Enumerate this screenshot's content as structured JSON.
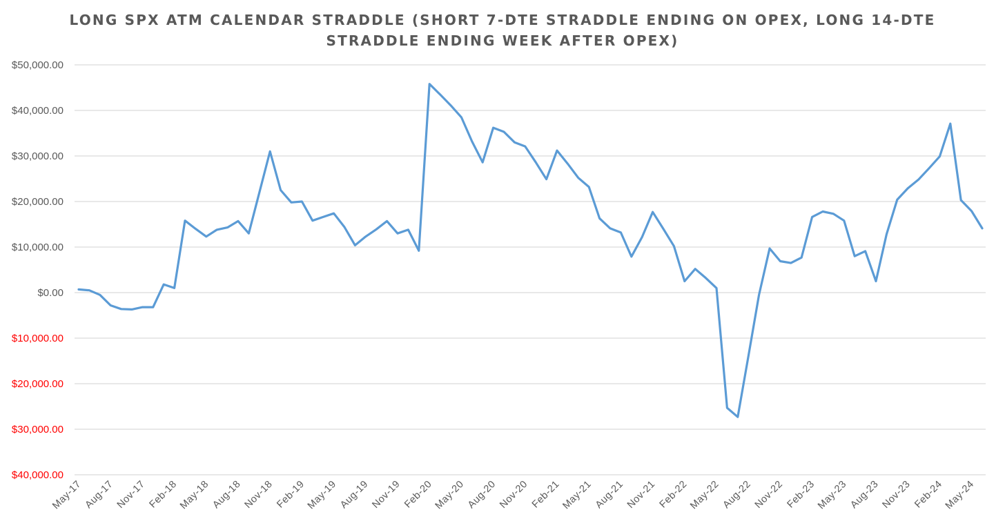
{
  "chart_data": {
    "type": "line",
    "title_lines": [
      "LONG SPX ATM CALENDAR STRADDLE (SHORT 7-DTE STRADDLE ENDING ON OPEX, LONG 14-DTE",
      "STRADDLE ENDING WEEK AFTER OPEX)"
    ],
    "xlabel": "",
    "ylabel": "",
    "ylim": [
      -40000,
      50000
    ],
    "y_ticks": [
      {
        "value": 50000,
        "label": "$50,000.00"
      },
      {
        "value": 40000,
        "label": "$40,000.00"
      },
      {
        "value": 30000,
        "label": "$30,000.00"
      },
      {
        "value": 20000,
        "label": "$20,000.00"
      },
      {
        "value": 10000,
        "label": "$10,000.00"
      },
      {
        "value": 0,
        "label": "$0.00"
      },
      {
        "value": -10000,
        "label": "$10,000.00"
      },
      {
        "value": -20000,
        "label": "$20,000.00"
      },
      {
        "value": -30000,
        "label": "$30,000.00"
      },
      {
        "value": -40000,
        "label": "$40,000.00"
      }
    ],
    "x_tick_labels": [
      "May-17",
      "Aug-17",
      "Nov-17",
      "Feb-18",
      "May-18",
      "Aug-18",
      "Nov-18",
      "Feb-19",
      "May-19",
      "Aug-19",
      "Nov-19",
      "Feb-20",
      "May-20",
      "Aug-20",
      "Nov-20",
      "Feb-21",
      "May-21",
      "Aug-21",
      "Nov-21",
      "Feb-22",
      "May-22",
      "Aug-22",
      "Nov-22",
      "Feb-23",
      "May-23",
      "Aug-23",
      "Nov-23",
      "Feb-24",
      "May-24"
    ],
    "grid": true,
    "legend": "none",
    "colors": {
      "line": "#5b9bd5",
      "grid": "#d9d9d9",
      "tick_text": "#595959",
      "negative_tick_text": "#ff0000",
      "title": "#595959"
    },
    "x": [
      "May-17",
      "Jun-17",
      "Jul-17",
      "Aug-17",
      "Sep-17",
      "Oct-17",
      "Nov-17",
      "Dec-17",
      "Jan-18",
      "Feb-18",
      "Mar-18",
      "Apr-18",
      "May-18",
      "Jun-18",
      "Jul-18",
      "Aug-18",
      "Sep-18",
      "Oct-18",
      "Nov-18",
      "Dec-18",
      "Jan-19",
      "Feb-19",
      "Mar-19",
      "Apr-19",
      "May-19",
      "Jun-19",
      "Jul-19",
      "Aug-19",
      "Sep-19",
      "Oct-19",
      "Nov-19",
      "Dec-19",
      "Jan-20",
      "Feb-20",
      "Mar-20",
      "Apr-20",
      "May-20",
      "Jun-20",
      "Jul-20",
      "Aug-20",
      "Sep-20",
      "Oct-20",
      "Nov-20",
      "Dec-20",
      "Jan-21",
      "Feb-21",
      "Mar-21",
      "Apr-21",
      "May-21",
      "Jun-21",
      "Jul-21",
      "Aug-21",
      "Sep-21",
      "Oct-21",
      "Nov-21",
      "Dec-21",
      "Jan-22",
      "Feb-22",
      "Mar-22",
      "Apr-22",
      "May-22",
      "Jun-22",
      "Jul-22",
      "Aug-22",
      "Sep-22",
      "Oct-22",
      "Nov-22",
      "Dec-22",
      "Jan-23",
      "Feb-23",
      "Mar-23",
      "Apr-23",
      "May-23",
      "Jun-23",
      "Jul-23",
      "Aug-23",
      "Sep-23",
      "Oct-23",
      "Nov-23",
      "Dec-23",
      "Jan-24",
      "Feb-24",
      "Mar-24",
      "Apr-24",
      "May-24",
      "Jun-24"
    ],
    "series": [
      {
        "values": [
          700,
          500,
          -500,
          -2800,
          -3600,
          -3700,
          -3200,
          -3200,
          1800,
          1000,
          15800,
          14000,
          12300,
          13800,
          14300,
          15700,
          13000,
          22000,
          31000,
          22500,
          19800,
          20000,
          15800,
          16600,
          17400,
          14400,
          10400,
          12300,
          13900,
          15700,
          13000,
          13800,
          9200,
          45800,
          43500,
          41100,
          38500,
          33200,
          28600,
          36200,
          35300,
          33000,
          32100,
          28600,
          24900,
          31200,
          28300,
          25200,
          23200,
          16300,
          14100,
          13200,
          7900,
          12200,
          17700,
          14000,
          10200,
          2500,
          5200,
          3200,
          1000,
          -25300,
          -27300,
          -14000,
          -500,
          9700,
          6900,
          6500,
          7700,
          16600,
          17800,
          17300,
          15800,
          8000,
          9100,
          2500,
          12800,
          20400,
          22900,
          24800,
          27300,
          29900,
          37100,
          20300,
          17900,
          14100
        ]
      }
    ]
  }
}
